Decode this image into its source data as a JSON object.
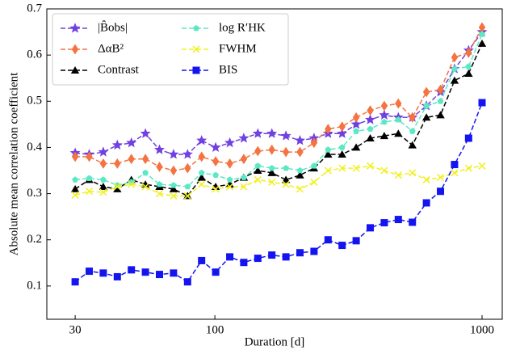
{
  "chart_data": {
    "type": "line",
    "xlabel": "Duration [d]",
    "ylabel": "Absolute mean correlation coefficient",
    "xscale": "log",
    "xlim": [
      23.5,
      1190
    ],
    "ylim": [
      0.028,
      0.7
    ],
    "xticks": [
      30,
      100,
      1000
    ],
    "yticks": [
      0.1,
      0.2,
      0.3,
      0.4,
      0.5,
      0.6,
      0.7
    ],
    "legend": "upper left",
    "legend_columns": 2,
    "x": [
      30,
      33.86,
      38.22,
      43.14,
      48.7,
      54.96,
      62.04,
      70.02,
      79.04,
      89.21,
      100.7,
      113.7,
      128.3,
      144.8,
      163.4,
      184.5,
      208.2,
      235,
      265.3,
      299.4,
      338,
      381.5,
      430.6,
      486,
      548.6,
      619.2,
      698.9,
      788.9,
      890.4,
      1000
    ],
    "series": [
      {
        "name": "|B̂obs|",
        "color": "#7040e0",
        "marker": "star",
        "values": [
          0.388,
          0.385,
          0.39,
          0.405,
          0.41,
          0.43,
          0.395,
          0.385,
          0.385,
          0.415,
          0.4,
          0.41,
          0.42,
          0.43,
          0.43,
          0.425,
          0.415,
          0.42,
          0.43,
          0.43,
          0.45,
          0.46,
          0.47,
          0.465,
          0.465,
          0.49,
          0.52,
          0.57,
          0.61,
          0.65
        ]
      },
      {
        "name": "ΔαB²",
        "color": "#f47340",
        "marker": "diamond",
        "values": [
          0.38,
          0.38,
          0.365,
          0.365,
          0.375,
          0.375,
          0.358,
          0.35,
          0.355,
          0.38,
          0.37,
          0.365,
          0.375,
          0.392,
          0.395,
          0.39,
          0.39,
          0.41,
          0.44,
          0.445,
          0.465,
          0.48,
          0.49,
          0.495,
          0.465,
          0.52,
          0.525,
          0.595,
          0.605,
          0.66
        ]
      },
      {
        "name": "Contrast",
        "color": "#000000",
        "marker": "triangle",
        "values": [
          0.31,
          0.33,
          0.315,
          0.31,
          0.33,
          0.32,
          0.315,
          0.31,
          0.295,
          0.335,
          0.315,
          0.32,
          0.335,
          0.35,
          0.345,
          0.33,
          0.34,
          0.355,
          0.385,
          0.385,
          0.4,
          0.42,
          0.425,
          0.43,
          0.405,
          0.465,
          0.47,
          0.545,
          0.56,
          0.625
        ]
      },
      {
        "name": "log R′HK",
        "color": "#5ce8c4",
        "marker": "pentagon",
        "values": [
          0.33,
          0.333,
          0.33,
          0.318,
          0.325,
          0.345,
          0.32,
          0.318,
          0.315,
          0.345,
          0.34,
          0.33,
          0.335,
          0.36,
          0.355,
          0.355,
          0.35,
          0.36,
          0.395,
          0.4,
          0.435,
          0.44,
          0.455,
          0.46,
          0.435,
          0.49,
          0.5,
          0.57,
          0.575,
          0.645
        ]
      },
      {
        "name": "FWHM",
        "color": "#f0f020",
        "marker": "x",
        "values": [
          0.297,
          0.305,
          0.303,
          0.315,
          0.32,
          0.315,
          0.3,
          0.295,
          0.295,
          0.32,
          0.31,
          0.315,
          0.315,
          0.33,
          0.325,
          0.32,
          0.31,
          0.325,
          0.35,
          0.355,
          0.355,
          0.36,
          0.35,
          0.34,
          0.345,
          0.33,
          0.335,
          0.345,
          0.355,
          0.36
        ]
      },
      {
        "name": "BIS",
        "color": "#1414f0",
        "marker": "square",
        "values": [
          0.109,
          0.132,
          0.128,
          0.12,
          0.135,
          0.13,
          0.125,
          0.128,
          0.109,
          0.155,
          0.13,
          0.163,
          0.151,
          0.16,
          0.167,
          0.163,
          0.172,
          0.175,
          0.2,
          0.188,
          0.198,
          0.226,
          0.237,
          0.244,
          0.238,
          0.28,
          0.305,
          0.363,
          0.42,
          0.497
        ]
      }
    ]
  }
}
